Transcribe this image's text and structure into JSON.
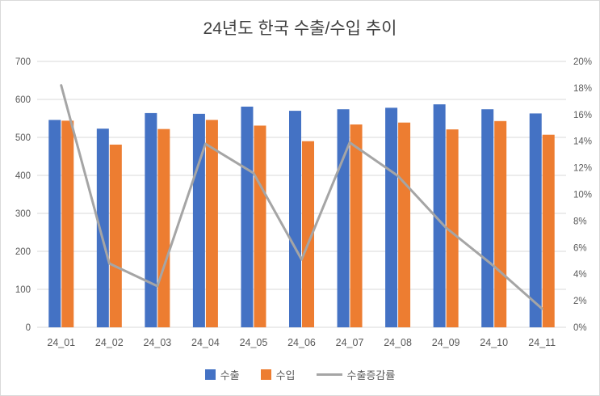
{
  "chart_data": {
    "type": "bar",
    "subtype": "grouped-bars-with-line",
    "title": "24년도 한국 수출/수입 추이",
    "categories": [
      "24_01",
      "24_02",
      "24_03",
      "24_04",
      "24_05",
      "24_06",
      "24_07",
      "24_08",
      "24_09",
      "24_10",
      "24_11"
    ],
    "series": [
      {
        "name": "수출",
        "type": "bar",
        "axis": "left",
        "color": "#4472C4",
        "values": [
          546,
          523,
          564,
          562,
          581,
          570,
          574,
          578,
          587,
          574,
          563
        ]
      },
      {
        "name": "수입",
        "type": "bar",
        "axis": "left",
        "color": "#ED7D31",
        "values": [
          544,
          481,
          522,
          546,
          531,
          490,
          534,
          539,
          521,
          543,
          507
        ]
      },
      {
        "name": "수출증감률",
        "type": "line",
        "axis": "right",
        "color": "#A5A5A5",
        "values": [
          18.2,
          4.8,
          3.1,
          13.8,
          11.6,
          5.1,
          13.9,
          11.4,
          7.5,
          4.6,
          1.4
        ]
      }
    ],
    "left_axis": {
      "min": 0,
      "max": 700,
      "step": 100,
      "suffix": ""
    },
    "right_axis": {
      "min": 0,
      "max": 20,
      "step": 2,
      "suffix": "%"
    },
    "grid": "horizontal",
    "gridline_color": "#D9D9D9",
    "legend_position": "bottom"
  }
}
